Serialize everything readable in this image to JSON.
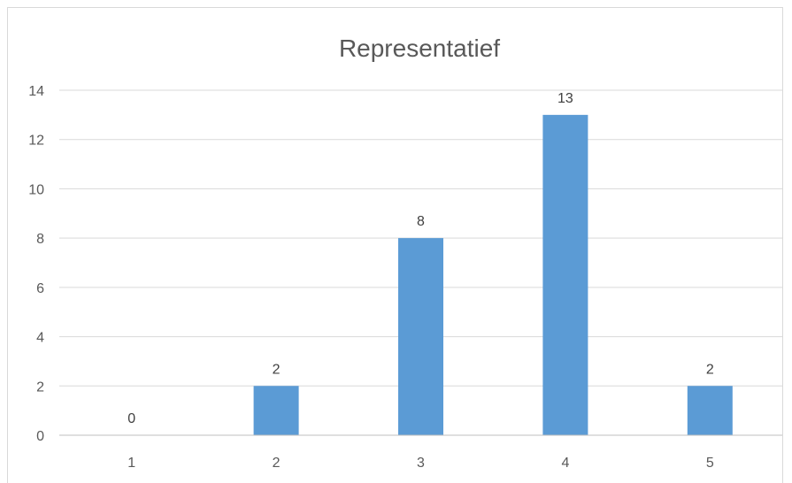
{
  "chart_data": {
    "type": "bar",
    "title": "Representatief",
    "categories": [
      "1",
      "2",
      "3",
      "4",
      "5"
    ],
    "values": [
      0,
      2,
      8,
      13,
      2
    ],
    "xlabel": "",
    "ylabel": "",
    "ylim": [
      0,
      14
    ],
    "yticks": [
      "0",
      "2",
      "4",
      "6",
      "8",
      "10",
      "12",
      "14"
    ],
    "data_labels": [
      "0",
      "2",
      "8",
      "13",
      "2"
    ],
    "grid": true,
    "legend": "none",
    "bar_color": "#5b9bd5"
  }
}
